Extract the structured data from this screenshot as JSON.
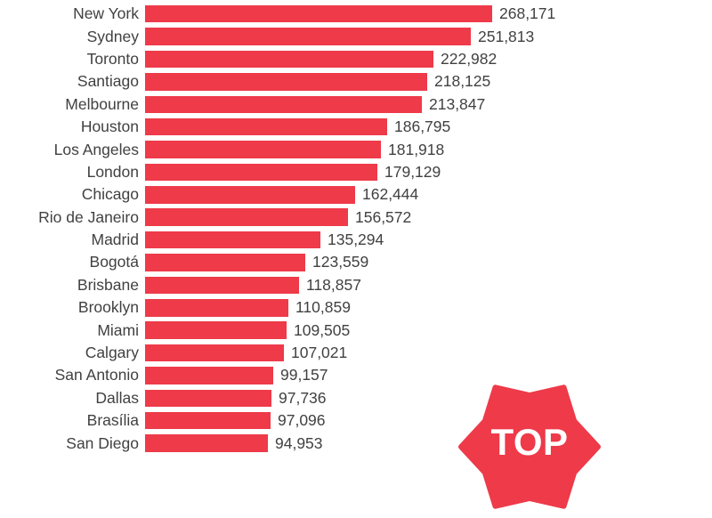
{
  "page": {
    "background": "#ffffff"
  },
  "chart_data": {
    "type": "bar",
    "orientation": "horizontal",
    "categories": [
      "New York",
      "Sydney",
      "Toronto",
      "Santiago",
      "Melbourne",
      "Houston",
      "Los Angeles",
      "London",
      "Chicago",
      "Rio de Janeiro",
      "Madrid",
      "Bogotá",
      "Brisbane",
      "Brooklyn",
      "Miami",
      "Calgary",
      "San Antonio",
      "Dallas",
      "Brasília",
      "San Diego"
    ],
    "values": [
      268171,
      251813,
      222982,
      218125,
      213847,
      186795,
      181918,
      179129,
      162444,
      156572,
      135294,
      123559,
      118857,
      110859,
      109505,
      107021,
      99157,
      97736,
      97096,
      94953
    ],
    "value_labels": [
      "268,171",
      "251,813",
      "222,982",
      "218,125",
      "213,847",
      "186,795",
      "181,918",
      "179,129",
      "162,444",
      "156,572",
      "135,294",
      "123,559",
      "118,857",
      "110,859",
      "109,505",
      "107,021",
      "99,157",
      "97,736",
      "97,096",
      "94,953"
    ],
    "xlim": [
      0,
      268171
    ],
    "bar_color": "#ee3a49",
    "label_color": "#414141",
    "grid": false,
    "legend": false,
    "value_labels_position": "end-of-bar"
  },
  "badge": {
    "label": "TOP",
    "color": "#ee3a49",
    "text_color": "#ffffff"
  }
}
